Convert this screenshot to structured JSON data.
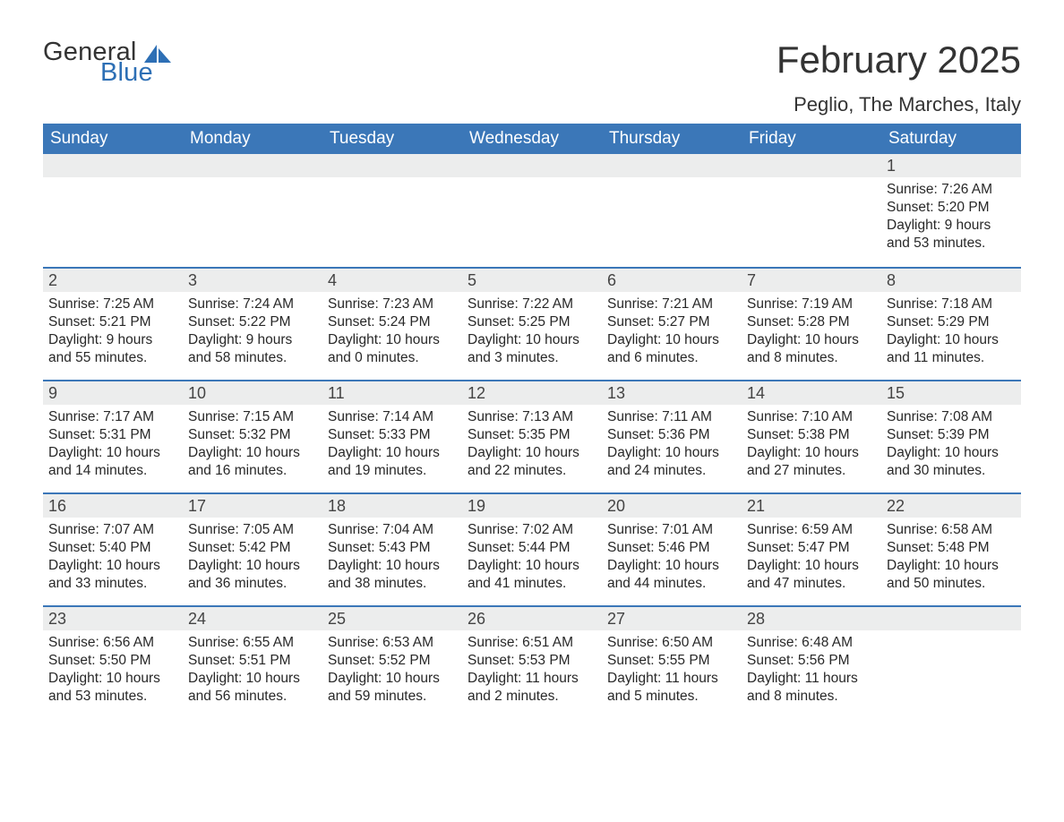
{
  "logo": {
    "text1": "General",
    "text2": "Blue"
  },
  "header": {
    "month_title": "February 2025",
    "location": "Peglio, The Marches, Italy"
  },
  "weekday_labels": [
    "Sunday",
    "Monday",
    "Tuesday",
    "Wednesday",
    "Thursday",
    "Friday",
    "Saturday"
  ],
  "labels": {
    "sunrise": "Sunrise",
    "sunset": "Sunset",
    "daylight": "Daylight"
  },
  "colors": {
    "header_blue": "#3b77b8",
    "accent_blue": "#2d6fb5",
    "daynum_bg": "#eceded",
    "text": "#282828",
    "background": "#ffffff"
  },
  "typography": {
    "month_title_fontsize": 42,
    "location_fontsize": 22,
    "weekday_fontsize": 19,
    "daynum_fontsize": 18,
    "body_fontsize": 15.5,
    "font_family": "Arial"
  },
  "calendar": {
    "type": "table",
    "columns": 7,
    "rows": 5,
    "first_day_column_index": 6,
    "days": [
      {
        "n": 1,
        "sunrise": "7:26 AM",
        "sunset": "5:20 PM",
        "daylight": "9 hours and 53 minutes."
      },
      {
        "n": 2,
        "sunrise": "7:25 AM",
        "sunset": "5:21 PM",
        "daylight": "9 hours and 55 minutes."
      },
      {
        "n": 3,
        "sunrise": "7:24 AM",
        "sunset": "5:22 PM",
        "daylight": "9 hours and 58 minutes."
      },
      {
        "n": 4,
        "sunrise": "7:23 AM",
        "sunset": "5:24 PM",
        "daylight": "10 hours and 0 minutes."
      },
      {
        "n": 5,
        "sunrise": "7:22 AM",
        "sunset": "5:25 PM",
        "daylight": "10 hours and 3 minutes."
      },
      {
        "n": 6,
        "sunrise": "7:21 AM",
        "sunset": "5:27 PM",
        "daylight": "10 hours and 6 minutes."
      },
      {
        "n": 7,
        "sunrise": "7:19 AM",
        "sunset": "5:28 PM",
        "daylight": "10 hours and 8 minutes."
      },
      {
        "n": 8,
        "sunrise": "7:18 AM",
        "sunset": "5:29 PM",
        "daylight": "10 hours and 11 minutes."
      },
      {
        "n": 9,
        "sunrise": "7:17 AM",
        "sunset": "5:31 PM",
        "daylight": "10 hours and 14 minutes."
      },
      {
        "n": 10,
        "sunrise": "7:15 AM",
        "sunset": "5:32 PM",
        "daylight": "10 hours and 16 minutes."
      },
      {
        "n": 11,
        "sunrise": "7:14 AM",
        "sunset": "5:33 PM",
        "daylight": "10 hours and 19 minutes."
      },
      {
        "n": 12,
        "sunrise": "7:13 AM",
        "sunset": "5:35 PM",
        "daylight": "10 hours and 22 minutes."
      },
      {
        "n": 13,
        "sunrise": "7:11 AM",
        "sunset": "5:36 PM",
        "daylight": "10 hours and 24 minutes."
      },
      {
        "n": 14,
        "sunrise": "7:10 AM",
        "sunset": "5:38 PM",
        "daylight": "10 hours and 27 minutes."
      },
      {
        "n": 15,
        "sunrise": "7:08 AM",
        "sunset": "5:39 PM",
        "daylight": "10 hours and 30 minutes."
      },
      {
        "n": 16,
        "sunrise": "7:07 AM",
        "sunset": "5:40 PM",
        "daylight": "10 hours and 33 minutes."
      },
      {
        "n": 17,
        "sunrise": "7:05 AM",
        "sunset": "5:42 PM",
        "daylight": "10 hours and 36 minutes."
      },
      {
        "n": 18,
        "sunrise": "7:04 AM",
        "sunset": "5:43 PM",
        "daylight": "10 hours and 38 minutes."
      },
      {
        "n": 19,
        "sunrise": "7:02 AM",
        "sunset": "5:44 PM",
        "daylight": "10 hours and 41 minutes."
      },
      {
        "n": 20,
        "sunrise": "7:01 AM",
        "sunset": "5:46 PM",
        "daylight": "10 hours and 44 minutes."
      },
      {
        "n": 21,
        "sunrise": "6:59 AM",
        "sunset": "5:47 PM",
        "daylight": "10 hours and 47 minutes."
      },
      {
        "n": 22,
        "sunrise": "6:58 AM",
        "sunset": "5:48 PM",
        "daylight": "10 hours and 50 minutes."
      },
      {
        "n": 23,
        "sunrise": "6:56 AM",
        "sunset": "5:50 PM",
        "daylight": "10 hours and 53 minutes."
      },
      {
        "n": 24,
        "sunrise": "6:55 AM",
        "sunset": "5:51 PM",
        "daylight": "10 hours and 56 minutes."
      },
      {
        "n": 25,
        "sunrise": "6:53 AM",
        "sunset": "5:52 PM",
        "daylight": "10 hours and 59 minutes."
      },
      {
        "n": 26,
        "sunrise": "6:51 AM",
        "sunset": "5:53 PM",
        "daylight": "11 hours and 2 minutes."
      },
      {
        "n": 27,
        "sunrise": "6:50 AM",
        "sunset": "5:55 PM",
        "daylight": "11 hours and 5 minutes."
      },
      {
        "n": 28,
        "sunrise": "6:48 AM",
        "sunset": "5:56 PM",
        "daylight": "11 hours and 8 minutes."
      }
    ]
  }
}
